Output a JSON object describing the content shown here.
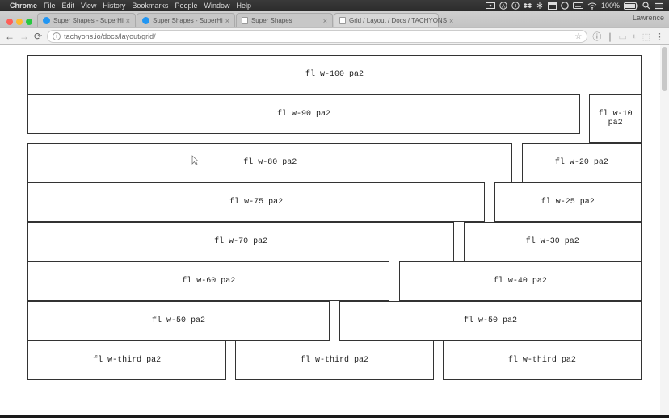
{
  "menubar": {
    "app": "Chrome",
    "items": [
      "File",
      "Edit",
      "View",
      "History",
      "Bookmarks",
      "People",
      "Window",
      "Help"
    ],
    "battery": "100%",
    "status_color": "#dddddd"
  },
  "chrome": {
    "traffic_colors": [
      "#ff5f57",
      "#febc2e",
      "#28c840"
    ],
    "tabs": [
      {
        "title": "Super Shapes - SuperHi",
        "favicon_color": "#2196f3",
        "type": "fav",
        "active": false
      },
      {
        "title": "Super Shapes - SuperHi",
        "favicon_color": "#2196f3",
        "type": "fav",
        "active": false
      },
      {
        "title": "Super Shapes",
        "type": "doc",
        "active": false
      },
      {
        "title": "Grid / Layout / Docs / TACHYONS",
        "type": "doc",
        "active": true
      }
    ],
    "user": "Lawrence",
    "url": "tachyons.io/docs/layout/grid/"
  },
  "grid": {
    "rows": [
      {
        "cells": [
          {
            "w": "w-100",
            "label": "fl w-100 pa2"
          }
        ],
        "gap": 0
      },
      {
        "cells": [
          {
            "w": "w-90",
            "label": "fl w-90 pa2"
          },
          {
            "w": "w-10",
            "label": "fl w-10 pa2"
          }
        ],
        "gap": 1.5
      },
      {
        "cells": [
          {
            "w": "w-80",
            "label": "fl w-80 pa2"
          },
          {
            "w": "w-20",
            "label": "fl w-20 pa2"
          }
        ],
        "gap": 1.5
      },
      {
        "cells": [
          {
            "w": "w-75",
            "label": "fl w-75 pa2"
          },
          {
            "w": "w-25",
            "label": "fl w-25 pa2"
          }
        ],
        "gap": 1.5
      },
      {
        "cells": [
          {
            "w": "w-70",
            "label": "fl w-70 pa2"
          },
          {
            "w": "w-30",
            "label": "fl w-30 pa2"
          }
        ],
        "gap": 1.5
      },
      {
        "cells": [
          {
            "w": "w-60",
            "label": "fl w-60 pa2"
          },
          {
            "w": "w-40",
            "label": "fl w-40 pa2"
          }
        ],
        "gap": 1.5
      },
      {
        "cells": [
          {
            "w": "w-50",
            "label": "fl w-50 pa2"
          },
          {
            "w": "w-50",
            "label": "fl w-50 pa2"
          }
        ],
        "gap": 1.6
      },
      {
        "cells": [
          {
            "w": "w-third",
            "label": "fl w-third pa2"
          },
          {
            "w": "w-third",
            "label": "fl w-third pa2"
          },
          {
            "w": "w-third",
            "label": "fl w-third pa2"
          }
        ],
        "gap": 1.4
      }
    ],
    "border_color": "#333333",
    "font": "monospace"
  }
}
